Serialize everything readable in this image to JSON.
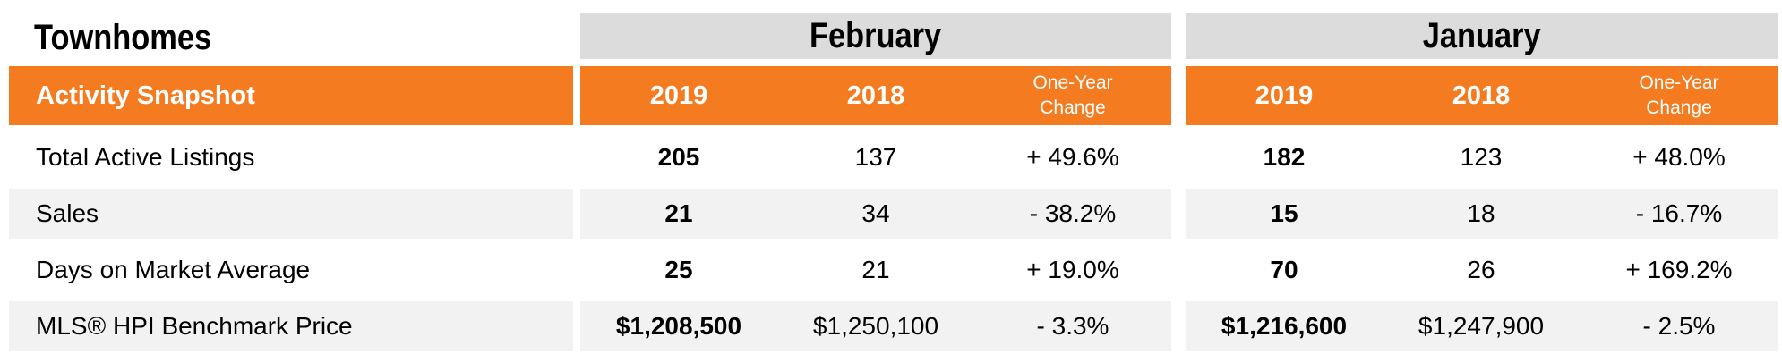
{
  "title": "Townhomes",
  "header": {
    "label": "Activity Snapshot",
    "months": [
      {
        "name": "February",
        "year1": "2019",
        "year2": "2018",
        "change": "One-Year\nChange"
      },
      {
        "name": "January",
        "year1": "2019",
        "year2": "2018",
        "change": "One-Year\nChange"
      }
    ]
  },
  "rows": [
    {
      "label": "Total Active Listings",
      "feb": [
        "205",
        "137",
        "+ 49.6%"
      ],
      "jan": [
        "182",
        "123",
        "+ 48.0%"
      ]
    },
    {
      "label": "Sales",
      "feb": [
        "21",
        "34",
        "- 38.2%"
      ],
      "jan": [
        "15",
        "18",
        "- 16.7%"
      ]
    },
    {
      "label": "Days on Market Average",
      "feb": [
        "25",
        "21",
        "+ 19.0%"
      ],
      "jan": [
        "70",
        "26",
        "+ 169.2%"
      ]
    },
    {
      "label": "MLS® HPI Benchmark Price",
      "feb": [
        "$1,208,500",
        "$1,250,100",
        "- 3.3%"
      ],
      "jan": [
        "$1,216,600",
        "$1,247,900",
        "- 2.5%"
      ]
    }
  ],
  "colors": {
    "accent": "#f47b20",
    "month_bg": "#dcdcdc",
    "row_shade": "#f2f2f2"
  }
}
